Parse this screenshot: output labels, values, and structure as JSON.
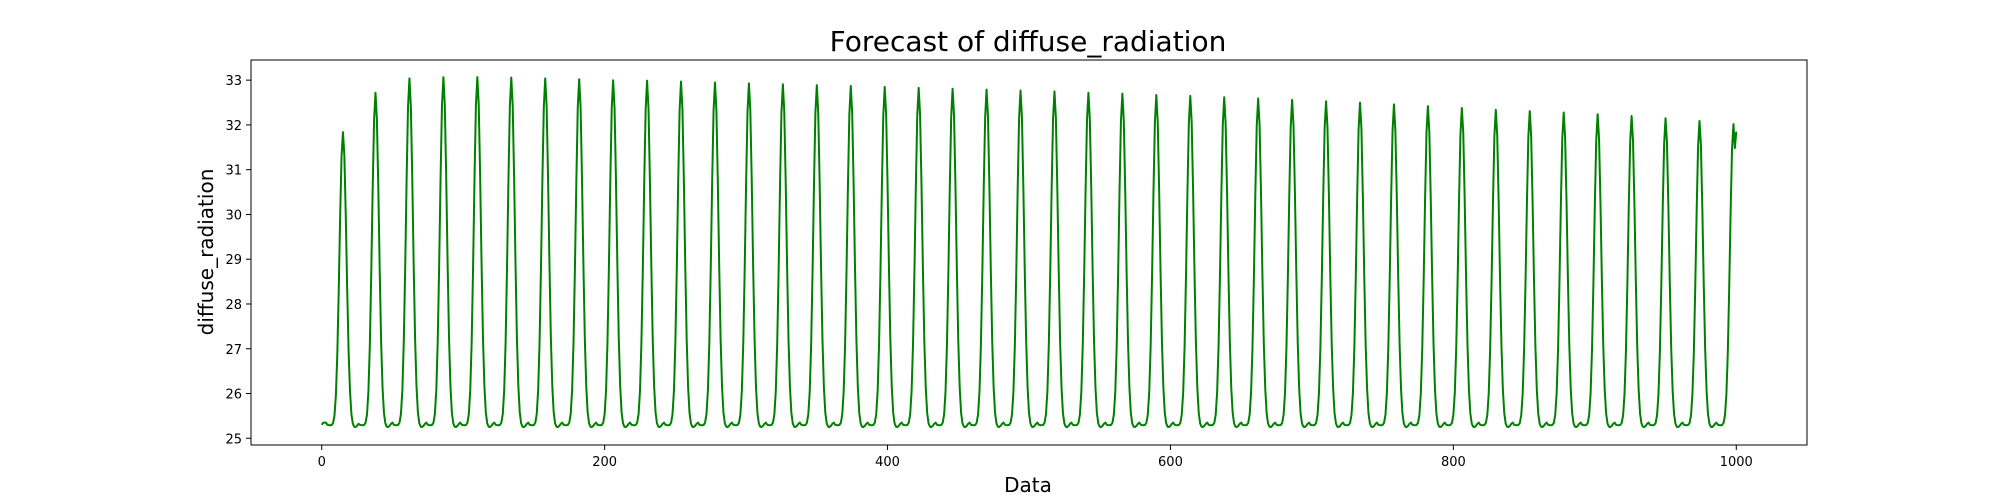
{
  "chart_data": {
    "type": "line",
    "title": "Forecast of diffuse_radiation",
    "xlabel": "Data",
    "ylabel": "diffuse_radiation",
    "xlim": [
      -50,
      1050
    ],
    "ylim": [
      24.85,
      33.45
    ],
    "xticks": [
      0,
      200,
      400,
      600,
      800,
      1000
    ],
    "yticks": [
      25,
      26,
      27,
      28,
      29,
      30,
      31,
      32,
      33
    ],
    "grid": false,
    "legend": "none",
    "series": [
      {
        "color": "#008000",
        "period": 24,
        "x_start": 0,
        "x_end": 1000,
        "baseline": 25.35,
        "first_value": 25.3,
        "last_value": 31.85,
        "peaks": [
          {
            "x": 15,
            "y": 31.8
          },
          {
            "x": 38,
            "y": 32.68
          },
          {
            "x": 62,
            "y": 33.0
          },
          {
            "x": 86,
            "y": 33.03
          },
          {
            "x": 110,
            "y": 33.03
          },
          {
            "x": 134,
            "y": 33.02
          },
          {
            "x": 158,
            "y": 33.0
          },
          {
            "x": 182,
            "y": 32.98
          },
          {
            "x": 206,
            "y": 32.96
          },
          {
            "x": 230,
            "y": 32.95
          },
          {
            "x": 254,
            "y": 32.93
          },
          {
            "x": 278,
            "y": 32.91
          },
          {
            "x": 302,
            "y": 32.89
          },
          {
            "x": 326,
            "y": 32.87
          },
          {
            "x": 350,
            "y": 32.85
          },
          {
            "x": 374,
            "y": 32.83
          },
          {
            "x": 398,
            "y": 32.81
          },
          {
            "x": 422,
            "y": 32.79
          },
          {
            "x": 446,
            "y": 32.77
          },
          {
            "x": 470,
            "y": 32.75
          },
          {
            "x": 494,
            "y": 32.73
          },
          {
            "x": 518,
            "y": 32.71
          },
          {
            "x": 542,
            "y": 32.68
          },
          {
            "x": 566,
            "y": 32.66
          },
          {
            "x": 590,
            "y": 32.63
          },
          {
            "x": 614,
            "y": 32.61
          },
          {
            "x": 638,
            "y": 32.58
          },
          {
            "x": 662,
            "y": 32.55
          },
          {
            "x": 686,
            "y": 32.52
          },
          {
            "x": 710,
            "y": 32.49
          },
          {
            "x": 734,
            "y": 32.46
          },
          {
            "x": 758,
            "y": 32.42
          },
          {
            "x": 782,
            "y": 32.38
          },
          {
            "x": 806,
            "y": 32.34
          },
          {
            "x": 830,
            "y": 32.3
          },
          {
            "x": 854,
            "y": 32.27
          },
          {
            "x": 878,
            "y": 32.24
          },
          {
            "x": 902,
            "y": 32.2
          },
          {
            "x": 926,
            "y": 32.16
          },
          {
            "x": 950,
            "y": 32.11
          },
          {
            "x": 974,
            "y": 32.05
          },
          {
            "x": 998,
            "y": 31.98
          }
        ]
      }
    ]
  }
}
